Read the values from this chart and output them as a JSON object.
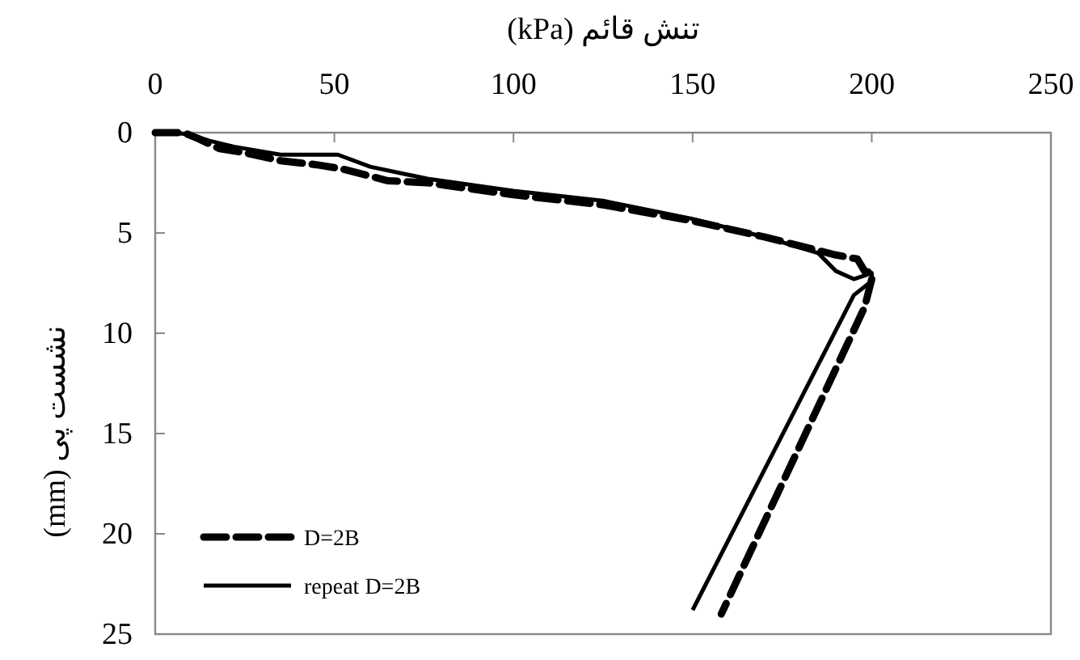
{
  "chart_data": {
    "type": "line",
    "xlabel": "تنش قائم (kPa)",
    "ylabel": "نشست پی (mm)",
    "xlim": [
      0,
      250
    ],
    "xticks": [
      0,
      50,
      100,
      150,
      200,
      250
    ],
    "ylim": [
      25,
      0
    ],
    "yticks": [
      0,
      5,
      10,
      15,
      20,
      25
    ],
    "grid": false,
    "legend": "bottom left",
    "marker": "none",
    "series": [
      {
        "name": "D=2B",
        "color": "#000000",
        "line_style": "dashed",
        "x": [
          0,
          8,
          12,
          18,
          25,
          35,
          45,
          52,
          65,
          76,
          100,
          125,
          150,
          170,
          190,
          196,
          198,
          200,
          200,
          198,
          158
        ],
        "values": [
          0,
          0,
          0.3,
          0.8,
          1.0,
          1.4,
          1.6,
          1.8,
          2.4,
          2.5,
          3.1,
          3.6,
          4.4,
          5.2,
          6.1,
          6.3,
          6.9,
          7.0,
          7.3,
          8.7,
          24.0
        ]
      },
      {
        "name": "repeat D=2B",
        "color": "#000000",
        "line_style": "solid",
        "x": [
          0,
          5,
          10,
          15,
          22,
          35,
          51,
          60,
          76,
          100,
          125,
          150,
          170,
          185,
          190,
          195,
          200,
          200,
          195,
          150
        ],
        "values": [
          0,
          0,
          0.1,
          0.4,
          0.7,
          1.1,
          1.1,
          1.7,
          2.3,
          2.9,
          3.4,
          4.3,
          5.2,
          6.0,
          6.9,
          7.3,
          7.0,
          7.4,
          8.1,
          23.8
        ]
      }
    ]
  }
}
